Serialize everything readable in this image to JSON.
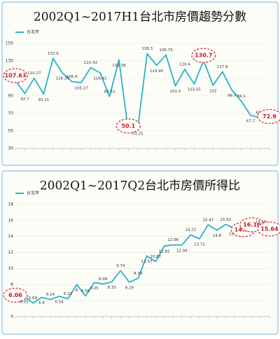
{
  "chart_data": [
    {
      "type": "line",
      "title": "2002Q1~2017H1台北市房價趨勢分數",
      "categories": [
        null,
        null,
        null,
        null,
        null,
        null,
        null,
        null,
        null,
        null,
        null,
        null,
        null,
        null,
        null,
        null,
        null,
        null,
        null,
        null,
        null,
        null,
        null,
        null,
        null,
        null,
        null,
        null
      ],
      "series": [
        {
          "name": "台北市",
          "color": "#29b3c8",
          "values": [
            107.63,
            92.7,
            110.27,
            92.11,
            132.9,
            116.24,
            106.4,
            105.27,
            122.42,
            116.41,
            89.33,
            131.38,
            50.1,
            53.25,
            138.3,
            124.95,
            136.75,
            101.5,
            120.4,
            103.55,
            130.7,
            102,
            117.8,
            96.7,
            84.1,
            67.7,
            65.4,
            72.9
          ]
        }
      ],
      "highlights": [
        0,
        12,
        20,
        27
      ],
      "ylim": [
        30,
        150
      ],
      "yticks": [
        30,
        50,
        70,
        90,
        110,
        130,
        150
      ],
      "grid": true
    },
    {
      "type": "line",
      "title": "2002Q1~2017Q2台北市房價所得比",
      "categories": [
        null,
        null,
        null,
        null,
        null,
        null,
        null,
        null,
        null,
        null,
        null,
        null,
        null,
        null,
        null,
        null,
        null,
        null,
        null,
        null,
        null,
        null,
        null,
        null,
        null,
        null,
        null,
        null,
        null,
        null
      ],
      "series": [
        {
          "name": "台北市",
          "color": "#29b3c8",
          "values": [
            6.06,
            6.55,
            5.69,
            6.4,
            6.14,
            6.54,
            6.22,
            8,
            6.58,
            8.25,
            8.08,
            8.33,
            9.74,
            8.29,
            8.79,
            11.57,
            10.87,
            12.82,
            12.96,
            12.94,
            14.22,
            13.72,
            15.47,
            14.8,
            15.52,
            15.01,
            14.25,
            16.16,
            15.18,
            15.64
          ]
        }
      ],
      "highlights": [
        0,
        26,
        27,
        29
      ],
      "ylim": [
        4,
        18
      ],
      "yticks": [
        4,
        6,
        8,
        10,
        12,
        14,
        16,
        18
      ],
      "grid": true
    }
  ]
}
